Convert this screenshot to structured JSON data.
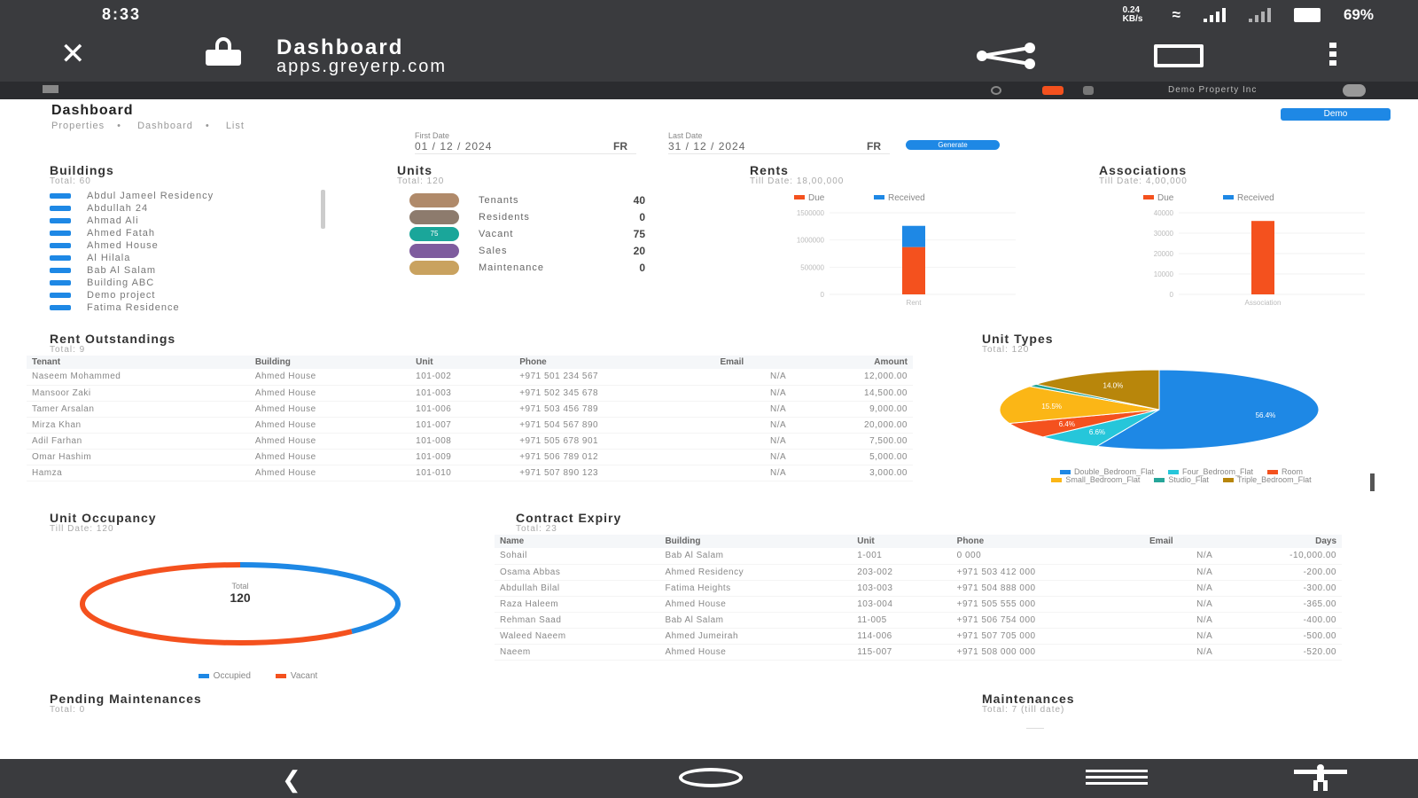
{
  "status_bar": {
    "time": "8:33",
    "network_speed": "0.24 KB/s",
    "battery": "69%"
  },
  "browser": {
    "page_title": "Dashboard",
    "url": "apps.greyerp.com"
  },
  "app_header": {
    "company": "Demo Property Inc"
  },
  "page": {
    "title": "Dashboard",
    "breadcrumb": [
      "Properties",
      "Dashboard",
      "List"
    ],
    "demo_button": "Demo",
    "first_date": {
      "label": "First Date",
      "value": "01 / 12 / 2024",
      "icon_text": "FR"
    },
    "last_date": {
      "label": "Last Date",
      "value": "31 / 12 / 2024",
      "icon_text": "FR"
    },
    "generate_button": "Generate"
  },
  "buildings": {
    "title": "Buildings",
    "subtitle": "Total: 60",
    "items": [
      "Abdul Jameel Residency",
      "Abdullah 24",
      "Ahmad Ali",
      "Ahmed Fatah",
      "Ahmed House",
      "Al Hilala",
      "Bab Al Salam",
      "Building ABC",
      "Demo project",
      "Fatima Residence"
    ]
  },
  "units": {
    "title": "Units",
    "subtitle": "Total: 120",
    "items": [
      {
        "label": "Tenants",
        "count": "40",
        "color": "#b08a6a"
      },
      {
        "label": "Residents",
        "count": "0",
        "color": "#8d7b6d"
      },
      {
        "label": "Vacant",
        "count": "75",
        "color": "#1aa69a",
        "badge": "75"
      },
      {
        "label": "Sales",
        "count": "20",
        "color": "#7e5c9e"
      },
      {
        "label": "Maintenance",
        "count": "0",
        "color": "#c9a25f"
      }
    ]
  },
  "rents": {
    "title": "Rents",
    "subtitle": "Till Date: 18,00,000",
    "legend": [
      {
        "name": "Due",
        "color": "#f4511e"
      },
      {
        "name": "Received",
        "color": "#1e88e5"
      }
    ],
    "y_ticks": [
      "1500000",
      "1000000",
      "500000",
      "0"
    ],
    "category": "Rent"
  },
  "associations": {
    "title": "Associations",
    "subtitle": "Till Date: 4,00,000",
    "legend": [
      {
        "name": "Due",
        "color": "#f4511e"
      },
      {
        "name": "Received",
        "color": "#1e88e5"
      }
    ],
    "y_ticks": [
      "40000",
      "30000",
      "20000",
      "10000",
      "0"
    ],
    "category": "Association"
  },
  "rent_outstanding": {
    "title": "Rent Outstandings",
    "subtitle": "Total: 9",
    "columns": [
      "Tenant",
      "Building",
      "Unit",
      "Phone",
      "Email",
      "Amount"
    ],
    "rows": [
      [
        "Naseem Mohammed",
        "Ahmed House",
        "101-002",
        "+971 501 234 567",
        "N/A",
        "12,000.00"
      ],
      [
        "Mansoor Zaki",
        "Ahmed House",
        "101-003",
        "+971 502 345 678",
        "N/A",
        "14,500.00"
      ],
      [
        "Tamer Arsalan",
        "Ahmed House",
        "101-006",
        "+971 503 456 789",
        "N/A",
        "9,000.00"
      ],
      [
        "Mirza Khan",
        "Ahmed House",
        "101-007",
        "+971 504 567 890",
        "N/A",
        "20,000.00"
      ],
      [
        "Adil Farhan",
        "Ahmed House",
        "101-008",
        "+971 505 678 901",
        "N/A",
        "7,500.00"
      ],
      [
        "Omar Hashim",
        "Ahmed House",
        "101-009",
        "+971 506 789 012",
        "N/A",
        "5,000.00"
      ],
      [
        "Hamza",
        "Ahmed House",
        "101-010",
        "+971 507 890 123",
        "N/A",
        "3,000.00"
      ]
    ]
  },
  "unit_types": {
    "title": "Unit Types",
    "subtitle": "Total: 120",
    "slices": [
      {
        "name": "Double_Bedroom_Flat",
        "value": 56.4,
        "label": "56.4%",
        "color": "#1e88e5"
      },
      {
        "name": "Four_Bedroom_Flat",
        "value": 6.6,
        "label": "6.6%",
        "color": "#26c6da"
      },
      {
        "name": "Room",
        "value": 6.4,
        "label": "6.4%",
        "color": "#f4511e"
      },
      {
        "name": "Small_Bedroom_Flat",
        "value": 15.5,
        "label": "15.5%",
        "color": "#fbb616"
      },
      {
        "name": "Studio_Flat",
        "value": 1.1,
        "label": "",
        "color": "#26a69a"
      },
      {
        "name": "Triple_Bedroom_Flat",
        "value": 14.0,
        "label": "14.0%",
        "color": "#b8860b"
      }
    ]
  },
  "unit_occupancy": {
    "title": "Unit Occupancy",
    "subtitle": "Till Date: 120",
    "center_label": "Total",
    "center_value": "120",
    "segments": [
      {
        "name": "Occupied",
        "value": 45,
        "color": "#1e88e5"
      },
      {
        "name": "Vacant",
        "value": 75,
        "color": "#f4511e"
      }
    ]
  },
  "contract_expiry": {
    "title": "Contract Expiry",
    "subtitle": "Total: 23",
    "columns": [
      "Name",
      "Building",
      "Unit",
      "Phone",
      "Email",
      "Days"
    ],
    "rows": [
      [
        "Sohail",
        "Bab Al Salam",
        "1-001",
        "0 000",
        "N/A",
        "-10,000.00"
      ],
      [
        "Osama Abbas",
        "Ahmed Residency",
        "203-002",
        "+971 503 412 000",
        "N/A",
        "-200.00"
      ],
      [
        "Abdullah Bilal",
        "Fatima Heights",
        "103-003",
        "+971 504 888 000",
        "N/A",
        "-300.00"
      ],
      [
        "Raza Haleem",
        "Ahmed House",
        "103-004",
        "+971 505 555 000",
        "N/A",
        "-365.00"
      ],
      [
        "Rehman Saad",
        "Bab Al Salam",
        "11-005",
        "+971 506 754 000",
        "N/A",
        "-400.00"
      ],
      [
        "Waleed Naeem",
        "Ahmed Jumeirah",
        "114-006",
        "+971 507 705 000",
        "N/A",
        "-500.00"
      ],
      [
        "Naeem",
        "Ahmed House",
        "115-007",
        "+971 508 000 000",
        "N/A",
        "-520.00"
      ]
    ]
  },
  "pending_maintenances": {
    "title": "Pending Maintenances",
    "subtitle": "Total: 0"
  },
  "maintenances": {
    "title": "Maintenances",
    "subtitle": "Total: 7 (till date)",
    "empty": "——"
  },
  "colors": {
    "accent": "#1e88e5",
    "due": "#f4511e",
    "chrome": "#3a3b3e"
  }
}
